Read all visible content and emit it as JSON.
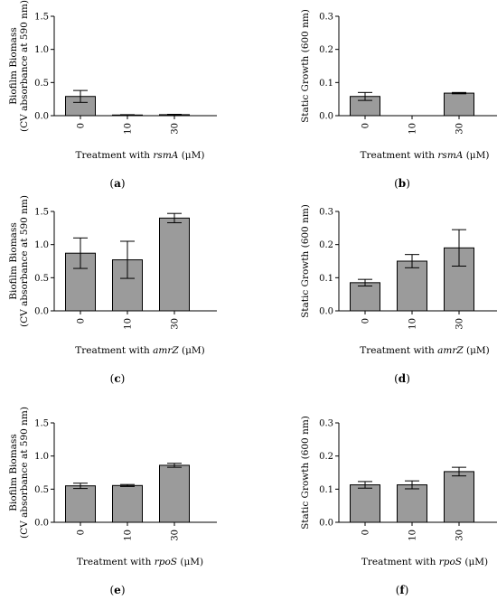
{
  "colors": {
    "bar_fill": "#9b9b9b",
    "stroke": "#000000"
  },
  "chart_data": [
    {
      "type": "bar",
      "panel": "(a)",
      "categories": [
        "0",
        "10",
        "30"
      ],
      "values": [
        0.29,
        0.01,
        0.015
      ],
      "errors": [
        0.09,
        0.005,
        0.005
      ],
      "ylabel": [
        "Biofilm Biomass",
        "(CV absorbance at 590 nm)"
      ],
      "xlabel_prefix": "Treatment with ",
      "xlabel_gene": "rsmA",
      "xlabel_suffix": " (μM)",
      "ylim": [
        0,
        1.5
      ],
      "yticks": [
        "0.0",
        "0.5",
        "1.0",
        "1.5"
      ]
    },
    {
      "type": "bar",
      "panel": "(b)",
      "categories": [
        "0",
        "10",
        "30"
      ],
      "values": [
        0.058,
        0.0,
        0.068
      ],
      "errors": [
        0.012,
        0.0,
        0.002
      ],
      "ylabel": [
        "Static Growth (600 nm)"
      ],
      "xlabel_prefix": "Treatment with ",
      "xlabel_gene": "rsmA",
      "xlabel_suffix": " (μM)",
      "ylim": [
        0,
        0.3
      ],
      "yticks": [
        "0.0",
        "0.1",
        "0.2",
        "0.3"
      ]
    },
    {
      "type": "bar",
      "panel": "(c)",
      "categories": [
        "0",
        "10",
        "30"
      ],
      "values": [
        0.87,
        0.77,
        1.4
      ],
      "errors": [
        0.23,
        0.28,
        0.07
      ],
      "ylabel": [
        "Biofilm Biomass",
        "(CV absorbance at 590 nm)"
      ],
      "xlabel_prefix": "Treatment with ",
      "xlabel_gene": "amrZ",
      "xlabel_suffix": " (μM)",
      "ylim": [
        0,
        1.5
      ],
      "yticks": [
        "0.0",
        "0.5",
        "1.0",
        "1.5"
      ]
    },
    {
      "type": "bar",
      "panel": "(d)",
      "categories": [
        "0",
        "10",
        "30"
      ],
      "values": [
        0.085,
        0.15,
        0.19
      ],
      "errors": [
        0.01,
        0.02,
        0.055
      ],
      "ylabel": [
        "Static Growth (600 nm)"
      ],
      "xlabel_prefix": "Treatment with ",
      "xlabel_gene": "amrZ",
      "xlabel_suffix": " (μM)",
      "ylim": [
        0,
        0.3
      ],
      "yticks": [
        "0.0",
        "0.1",
        "0.2",
        "0.3"
      ]
    },
    {
      "type": "bar",
      "panel": "(e)",
      "categories": [
        "0",
        "10",
        "30"
      ],
      "values": [
        0.55,
        0.555,
        0.86
      ],
      "errors": [
        0.04,
        0.015,
        0.03
      ],
      "ylabel": [
        "Biofilm Biomass",
        "(CV absorbance at 590 nm)"
      ],
      "xlabel_prefix": "Treatment with ",
      "xlabel_gene": "rpoS",
      "xlabel_suffix": " (μM)",
      "ylim": [
        0,
        1.5
      ],
      "yticks": [
        "0.0",
        "0.5",
        "1.0",
        "1.5"
      ]
    },
    {
      "type": "bar",
      "panel": "(f)",
      "categories": [
        "0",
        "10",
        "30"
      ],
      "values": [
        0.113,
        0.113,
        0.153
      ],
      "errors": [
        0.01,
        0.012,
        0.013
      ],
      "ylabel": [
        "Static Growth (600 nm)"
      ],
      "xlabel_prefix": "Treatment with ",
      "xlabel_gene": "rpoS",
      "xlabel_suffix": " (μM)",
      "ylim": [
        0,
        0.3
      ],
      "yticks": [
        "0.0",
        "0.1",
        "0.2",
        "0.3"
      ]
    }
  ]
}
